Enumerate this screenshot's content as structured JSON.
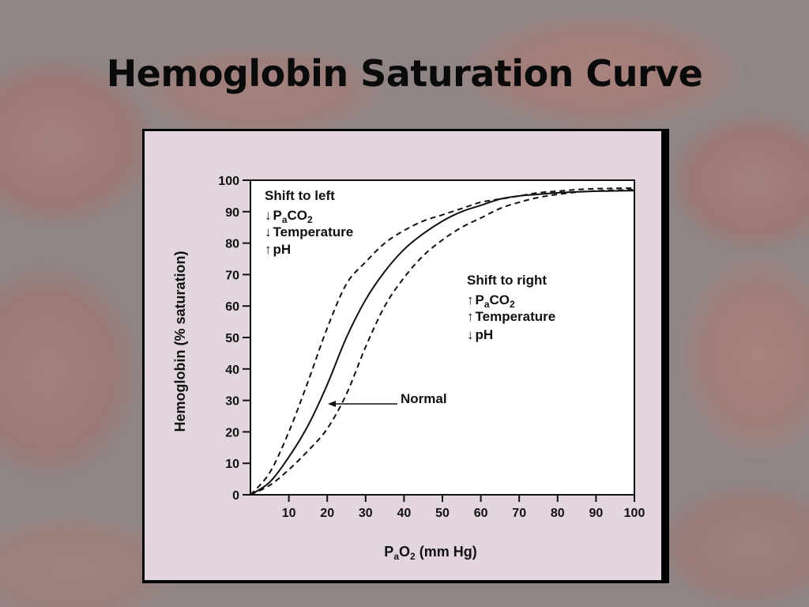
{
  "slide": {
    "title": "Hemoglobin Saturation Curve"
  },
  "colors": {
    "background": "#8f8585",
    "figure_background": "#e2d5de",
    "plot_background": "#ffffff",
    "ink": "#111111"
  },
  "chart_data": {
    "type": "line",
    "title": "",
    "xlabel": "PaO2 (mm Hg)",
    "xlabel_parts": {
      "main": "P",
      "sub": "a",
      "rest": "O",
      "sub2": "2",
      "unit": " (mm Hg)"
    },
    "ylabel": "Hemoglobin (% saturation)",
    "xlim": [
      0,
      100
    ],
    "ylim": [
      0,
      100
    ],
    "xticks": [
      10,
      20,
      30,
      40,
      50,
      60,
      70,
      80,
      90,
      100
    ],
    "yticks": [
      0,
      10,
      20,
      30,
      40,
      50,
      60,
      70,
      80,
      90,
      100
    ],
    "grid": false,
    "series": [
      {
        "name": "Normal",
        "style": "solid",
        "x": [
          0,
          5,
          10,
          15,
          20,
          25,
          30,
          35,
          40,
          45,
          50,
          55,
          60,
          65,
          70,
          75,
          80,
          85,
          90,
          95,
          100
        ],
        "y": [
          0,
          4,
          12,
          22,
          35,
          50,
          62,
          71,
          78,
          83,
          87,
          90,
          92,
          94,
          95,
          95.5,
          96,
          96.3,
          96.5,
          96.6,
          96.7
        ]
      },
      {
        "name": "Shift to left",
        "style": "dashed",
        "x": [
          0,
          5,
          10,
          15,
          20,
          25,
          30,
          35,
          40,
          45,
          50,
          55,
          60,
          65,
          70,
          75,
          80,
          85,
          90,
          95,
          100
        ],
        "y": [
          0,
          7,
          20,
          36,
          53,
          67,
          74,
          80,
          84,
          87,
          89,
          91,
          93,
          94,
          95,
          96,
          96.5,
          97,
          97.3,
          97.4,
          97.5
        ]
      },
      {
        "name": "Shift to right",
        "style": "dashed",
        "x": [
          0,
          5,
          10,
          15,
          20,
          25,
          30,
          35,
          40,
          45,
          50,
          55,
          60,
          65,
          70,
          75,
          80,
          85,
          90,
          95,
          100
        ],
        "y": [
          0,
          3,
          8,
          14,
          21,
          32,
          47,
          60,
          69,
          76,
          81,
          85,
          88,
          91,
          93,
          94.5,
          95.5,
          96.2,
          96.6,
          96.8,
          97
        ]
      }
    ],
    "annotations": {
      "shift_left": {
        "heading": "Shift to left",
        "items": [
          {
            "arrow": "↓",
            "text": "PaCO2"
          },
          {
            "arrow": "↓",
            "text": "Temperature"
          },
          {
            "arrow": "↑",
            "text": "pH"
          }
        ]
      },
      "shift_right": {
        "heading": "Shift to right",
        "items": [
          {
            "arrow": "↑",
            "text": "PaCO2"
          },
          {
            "arrow": "↑",
            "text": "Temperature"
          },
          {
            "arrow": "↓",
            "text": "pH"
          }
        ]
      },
      "normal_label": "Normal"
    }
  }
}
